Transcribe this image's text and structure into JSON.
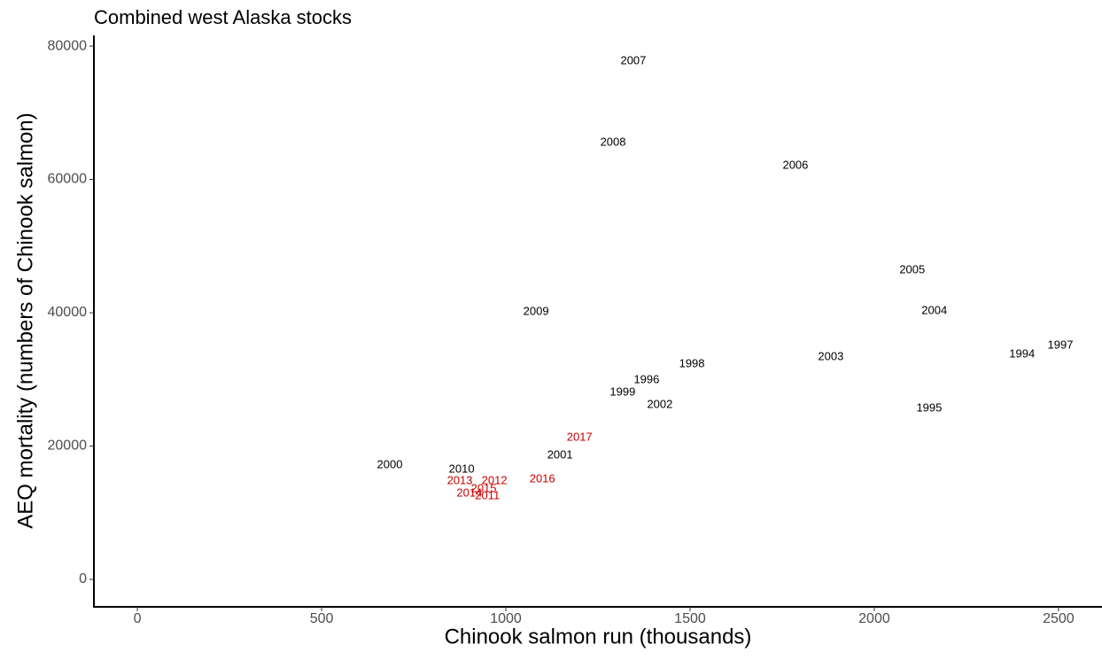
{
  "chart_data": {
    "type": "scatter",
    "title": "Combined west Alaska stocks",
    "x_label": "Chinook salmon run (thousands)",
    "y_label": "AEQ mortality (numbers of Chinook salmon)",
    "xlim": [
      -118,
      2618
    ],
    "ylim": [
      -4120,
      81600
    ],
    "xticks": [
      0,
      500,
      1000,
      1500,
      2000,
      2500
    ],
    "yticks": [
      0,
      20000,
      40000,
      60000,
      80000
    ],
    "series": [
      {
        "color": "#000000",
        "labels": [
          "2007",
          "2008",
          "2006",
          "2005",
          "2004",
          "2009",
          "1997",
          "1994",
          "2003",
          "1998",
          "1996",
          "1999",
          "2002",
          "1995",
          "2001",
          "2000",
          "2010"
        ],
        "x": [
          1346,
          1291,
          1786,
          2103,
          2163,
          1082,
          2505,
          2401,
          1882,
          1505,
          1382,
          1317,
          1418,
          2149,
          1147,
          685,
          880
        ],
        "values": [
          77740,
          65510,
          62060,
          46380,
          40270,
          40130,
          35080,
          33750,
          33350,
          32290,
          29900,
          28040,
          26180,
          25650,
          18600,
          17140,
          16480
        ]
      },
      {
        "color": "#cc0000",
        "labels": [
          "2017",
          "2016",
          "2013",
          "2012",
          "2015",
          "2014",
          "2011"
        ],
        "x": [
          1200,
          1099,
          875,
          969,
          940,
          901,
          950
        ],
        "values": [
          21260,
          15020,
          14750,
          14750,
          13550,
          12890,
          12490
        ]
      }
    ]
  }
}
